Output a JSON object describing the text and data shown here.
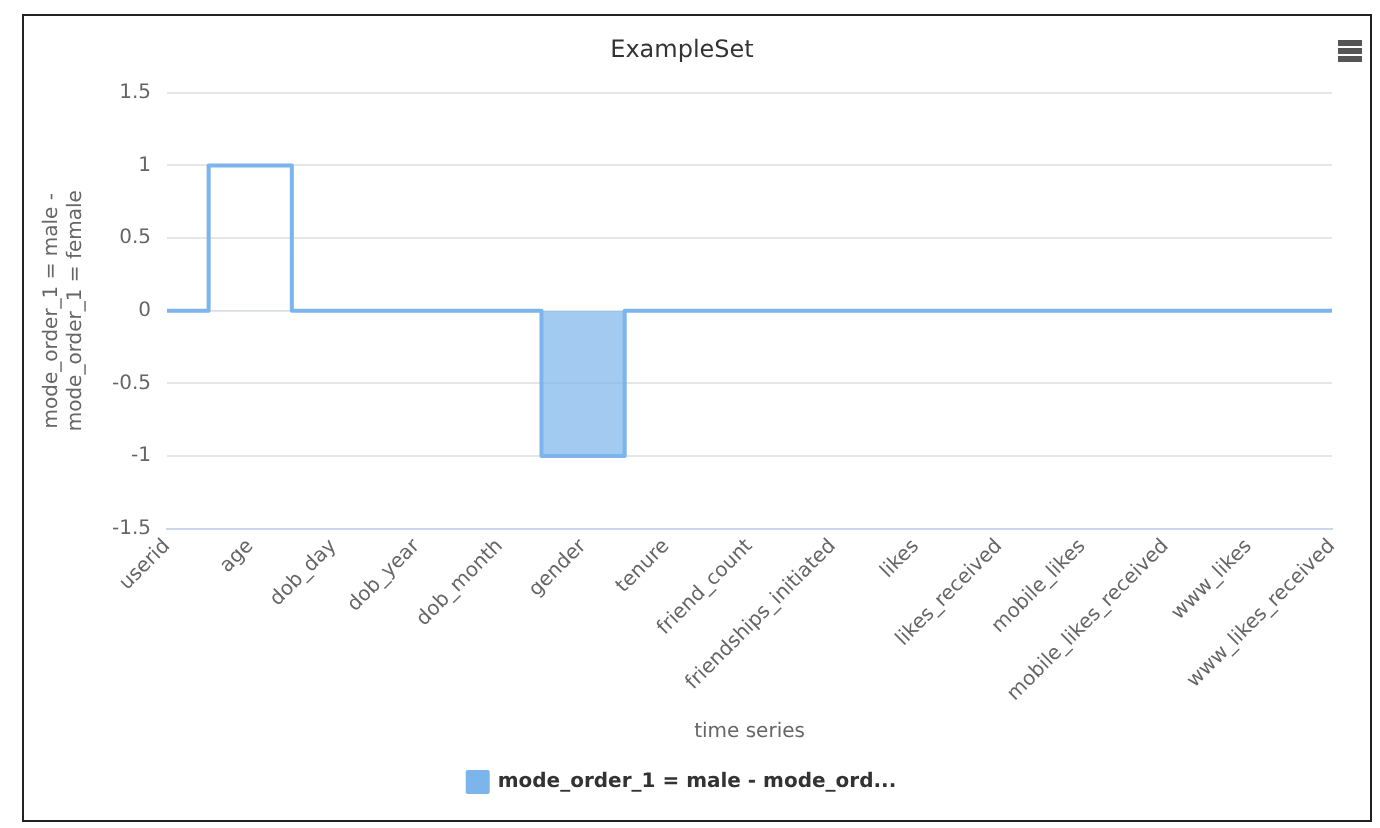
{
  "chart_data": {
    "type": "step",
    "title": "ExampleSet",
    "xlabel": "time series",
    "ylabel": "mode_order_1 = male - mode_order_1 = female",
    "categories": [
      "userid",
      "age",
      "dob_day",
      "dob_year",
      "dob_month",
      "gender",
      "tenure",
      "friend_count",
      "friendships_initiated",
      "likes",
      "likes_received",
      "mobile_likes",
      "mobile_likes_received",
      "www_likes",
      "www_likes_received"
    ],
    "series": [
      {
        "name": "mode_order_1 = male - mode_ord...",
        "color": "#7cb5ec",
        "values": [
          0,
          1,
          0,
          0,
          0,
          -1,
          0,
          0,
          0,
          0,
          0,
          0,
          0,
          0,
          0
        ]
      }
    ],
    "ylim": [
      -1.5,
      1.5
    ],
    "yticks": [
      -1.5,
      -1,
      -0.5,
      0,
      0.5,
      1,
      1.5
    ],
    "grid": "y",
    "legend": "bottom"
  }
}
